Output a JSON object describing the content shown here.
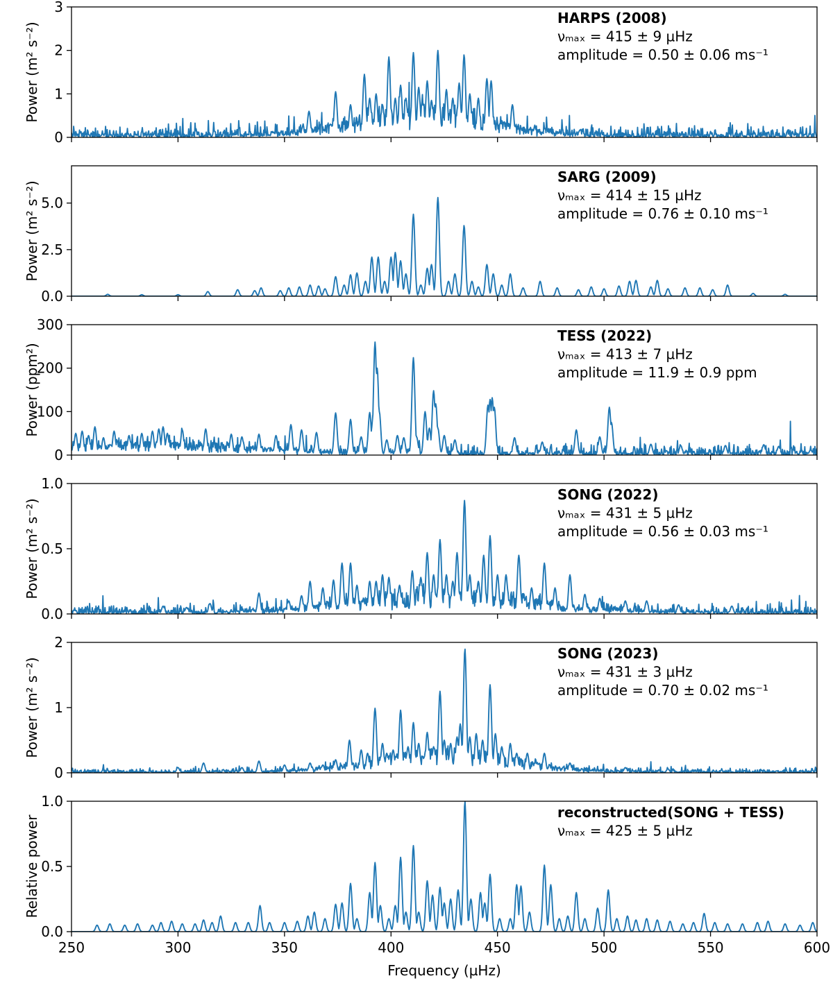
{
  "figure": {
    "xlabel": "Frequency (µHz)",
    "xlim": [
      250,
      600
    ],
    "xticks": [
      250,
      300,
      350,
      400,
      450,
      500,
      550,
      600
    ],
    "line_color": "#1f77b4"
  },
  "chart_data": [
    {
      "type": "line",
      "panel": "HARPS (2008)",
      "ylabel": "Power (m² s⁻²)",
      "ylim": [
        0,
        3
      ],
      "yticks": [
        0,
        1,
        2,
        3
      ],
      "ytick_labels": [
        "0",
        "1",
        "2",
        "3"
      ],
      "annotations": [
        "HARPS (2008)",
        "νₘₐₓ = 415 ± 9 µHz",
        "amplitude = 0.50 ± 0.06 ms⁻¹"
      ],
      "noise": 0.1,
      "envelope": {
        "center": 415,
        "width": 30,
        "height": 0.45
      },
      "seed": 3,
      "peaks": [
        [
          361.5,
          0.6
        ],
        [
          374,
          1.05
        ],
        [
          381,
          0.75
        ],
        [
          387.5,
          1.45
        ],
        [
          390,
          0.9
        ],
        [
          393,
          1.0
        ],
        [
          396,
          0.75
        ],
        [
          399,
          1.85
        ],
        [
          402,
          0.9
        ],
        [
          404.5,
          1.2
        ],
        [
          407,
          0.9
        ],
        [
          410.5,
          1.95
        ],
        [
          413,
          1.15
        ],
        [
          417,
          1.3
        ],
        [
          419,
          0.85
        ],
        [
          422,
          2.0
        ],
        [
          426,
          1.1
        ],
        [
          429,
          0.9
        ],
        [
          432,
          1.25
        ],
        [
          434.3,
          1.9
        ],
        [
          437,
          1.0
        ],
        [
          441,
          0.9
        ],
        [
          445,
          1.35
        ],
        [
          447,
          1.3
        ],
        [
          457,
          0.75
        ]
      ]
    },
    {
      "type": "line",
      "panel": "SARG (2009)",
      "ylabel": "Power (m² s⁻²)",
      "ylim": [
        0,
        7
      ],
      "yticks": [
        0,
        2.5,
        5
      ],
      "ytick_labels": [
        "0.0",
        "2.5",
        "5.0"
      ],
      "annotations": [
        "SARG (2009)",
        "νₘₐₓ = 414 ± 15 µHz",
        "amplitude = 0.76 ± 0.10 ms⁻¹"
      ],
      "noise": 0.0,
      "envelope": {
        "center": 414,
        "width": 35,
        "height": 0.0
      },
      "seed": 7,
      "peaks": [
        [
          267,
          0.1
        ],
        [
          283,
          0.08
        ],
        [
          300,
          0.08
        ],
        [
          314,
          0.25
        ],
        [
          328,
          0.35
        ],
        [
          336,
          0.3
        ],
        [
          339,
          0.45
        ],
        [
          348,
          0.3
        ],
        [
          352,
          0.45
        ],
        [
          357,
          0.5
        ],
        [
          362,
          0.6
        ],
        [
          366,
          0.55
        ],
        [
          369,
          0.4
        ],
        [
          374,
          1.05
        ],
        [
          378,
          0.6
        ],
        [
          381,
          1.15
        ],
        [
          384,
          1.25
        ],
        [
          388,
          0.8
        ],
        [
          391,
          2.1
        ],
        [
          394,
          2.1
        ],
        [
          397,
          0.8
        ],
        [
          400,
          2.1
        ],
        [
          402,
          2.35
        ],
        [
          404.5,
          1.9
        ],
        [
          407,
          1.2
        ],
        [
          410.5,
          4.4
        ],
        [
          414,
          0.6
        ],
        [
          417,
          1.5
        ],
        [
          419,
          1.7
        ],
        [
          422,
          5.3
        ],
        [
          427,
          0.8
        ],
        [
          430,
          1.2
        ],
        [
          434.3,
          3.8
        ],
        [
          438,
          0.8
        ],
        [
          441,
          0.5
        ],
        [
          445,
          1.7
        ],
        [
          448,
          1.2
        ],
        [
          452,
          0.6
        ],
        [
          456,
          1.2
        ],
        [
          462,
          0.45
        ],
        [
          470,
          0.8
        ],
        [
          478,
          0.45
        ],
        [
          488,
          0.35
        ],
        [
          494,
          0.5
        ],
        [
          500,
          0.4
        ],
        [
          507,
          0.55
        ],
        [
          512,
          0.8
        ],
        [
          515,
          0.85
        ],
        [
          522,
          0.5
        ],
        [
          525,
          0.85
        ],
        [
          530,
          0.4
        ],
        [
          538,
          0.45
        ],
        [
          545,
          0.45
        ],
        [
          551,
          0.35
        ],
        [
          558,
          0.6
        ],
        [
          570,
          0.15
        ],
        [
          585,
          0.1
        ]
      ]
    },
    {
      "type": "line",
      "panel": "TESS (2022)",
      "ylabel": "Power (ppm²)",
      "ylim": [
        0,
        300
      ],
      "yticks": [
        0,
        100,
        200,
        300
      ],
      "ytick_labels": [
        "0",
        "100",
        "200",
        "300"
      ],
      "annotations": [
        "TESS (2022)",
        "νₘₐₓ = 413 ± 7 µHz",
        "amplitude = 11.9 ± 0.9 ppm"
      ],
      "noise": 9,
      "envelope": {
        "center": 290,
        "width": 40,
        "height": 18
      },
      "seed": 11,
      "peaks": [
        [
          252,
          50
        ],
        [
          255,
          55
        ],
        [
          258,
          45
        ],
        [
          261,
          65
        ],
        [
          265,
          40
        ],
        [
          270,
          55
        ],
        [
          277,
          45
        ],
        [
          283,
          50
        ],
        [
          288,
          55
        ],
        [
          291,
          60
        ],
        [
          293,
          65
        ],
        [
          295,
          50
        ],
        [
          302,
          58
        ],
        [
          313,
          60
        ],
        [
          325,
          48
        ],
        [
          330,
          42
        ],
        [
          338,
          48
        ],
        [
          346,
          45
        ],
        [
          353,
          70
        ],
        [
          358,
          58
        ],
        [
          365,
          52
        ],
        [
          374,
          97
        ],
        [
          381,
          82
        ],
        [
          386,
          42
        ],
        [
          390,
          98
        ],
        [
          391.5,
          85
        ],
        [
          392.5,
          260
        ],
        [
          393.5,
          200
        ],
        [
          394.5,
          100
        ],
        [
          398,
          35
        ],
        [
          403,
          45
        ],
        [
          406,
          40
        ],
        [
          410.5,
          224
        ],
        [
          412,
          42
        ],
        [
          416,
          100
        ],
        [
          418,
          62
        ],
        [
          420,
          148
        ],
        [
          421,
          118
        ],
        [
          422,
          62
        ],
        [
          425,
          45
        ],
        [
          430,
          35
        ],
        [
          445.5,
          115
        ],
        [
          446.5,
          128
        ],
        [
          447.5,
          132
        ],
        [
          448.5,
          110
        ],
        [
          458,
          40
        ],
        [
          471,
          30
        ],
        [
          487,
          58
        ],
        [
          498,
          42
        ],
        [
          502.5,
          110
        ],
        [
          503.5,
          75
        ],
        [
          522,
          25
        ],
        [
          536,
          22
        ],
        [
          557,
          22
        ],
        [
          575,
          24
        ],
        [
          582,
          20
        ],
        [
          597,
          12
        ]
      ]
    },
    {
      "type": "line",
      "panel": "SONG (2022)",
      "ylabel": "Power (m² s⁻²)",
      "ylim": [
        0,
        1
      ],
      "yticks": [
        0,
        0.5,
        1
      ],
      "ytick_labels": [
        "0.0",
        "0.5",
        "1.0"
      ],
      "annotations": [
        "SONG (2022)",
        "νₘₐₓ = 431 ± 5 µHz",
        "amplitude = 0.56 ± 0.03 ms⁻¹"
      ],
      "noise": 0.025,
      "envelope": {
        "center": 425,
        "width": 42,
        "height": 0.11
      },
      "seed": 23,
      "peaks": [
        [
          293,
          0.06
        ],
        [
          304,
          0.05
        ],
        [
          315,
          0.08
        ],
        [
          338,
          0.16
        ],
        [
          352,
          0.1
        ],
        [
          358,
          0.14
        ],
        [
          362,
          0.25
        ],
        [
          368,
          0.2
        ],
        [
          373,
          0.26
        ],
        [
          377,
          0.39
        ],
        [
          381,
          0.39
        ],
        [
          384,
          0.22
        ],
        [
          390,
          0.25
        ],
        [
          393,
          0.25
        ],
        [
          396,
          0.3
        ],
        [
          399,
          0.28
        ],
        [
          404,
          0.22
        ],
        [
          410,
          0.33
        ],
        [
          414,
          0.28
        ],
        [
          417,
          0.47
        ],
        [
          420,
          0.3
        ],
        [
          423,
          0.57
        ],
        [
          426,
          0.3
        ],
        [
          429,
          0.25
        ],
        [
          431,
          0.47
        ],
        [
          434.5,
          0.87
        ],
        [
          437,
          0.3
        ],
        [
          441,
          0.25
        ],
        [
          443.5,
          0.45
        ],
        [
          446.5,
          0.6
        ],
        [
          450,
          0.3
        ],
        [
          454,
          0.3
        ],
        [
          460,
          0.45
        ],
        [
          466,
          0.2
        ],
        [
          472,
          0.39
        ],
        [
          477,
          0.2
        ],
        [
          484,
          0.3
        ],
        [
          491,
          0.15
        ],
        [
          498,
          0.12
        ],
        [
          510,
          0.1
        ],
        [
          520,
          0.1
        ],
        [
          535,
          0.07
        ],
        [
          560,
          0.06
        ]
      ]
    },
    {
      "type": "line",
      "panel": "SONG (2023)",
      "ylabel": "Power (m² s⁻²)",
      "ylim": [
        0,
        2
      ],
      "yticks": [
        0,
        1,
        2
      ],
      "ytick_labels": [
        "0",
        "1",
        "2"
      ],
      "annotations": [
        "SONG (2023)",
        "νₘₐₓ = 431 ± 3 µHz",
        "amplitude = 0.70 ± 0.02 ms⁻¹"
      ],
      "noise": 0.03,
      "envelope": {
        "center": 425,
        "width": 32,
        "height": 0.22
      },
      "seed": 31,
      "peaks": [
        [
          300,
          0.08
        ],
        [
          312,
          0.15
        ],
        [
          330,
          0.08
        ],
        [
          338,
          0.18
        ],
        [
          350,
          0.12
        ],
        [
          362,
          0.15
        ],
        [
          368,
          0.12
        ],
        [
          374,
          0.2
        ],
        [
          380.5,
          0.5
        ],
        [
          386,
          0.35
        ],
        [
          389,
          0.3
        ],
        [
          392.5,
          0.99
        ],
        [
          396,
          0.45
        ],
        [
          398,
          0.3
        ],
        [
          401,
          0.35
        ],
        [
          404.5,
          0.96
        ],
        [
          408,
          0.4
        ],
        [
          410.5,
          0.77
        ],
        [
          413,
          0.45
        ],
        [
          417,
          0.62
        ],
        [
          420,
          0.4
        ],
        [
          423,
          1.25
        ],
        [
          425,
          0.5
        ],
        [
          428,
          0.45
        ],
        [
          431,
          0.55
        ],
        [
          432.5,
          0.75
        ],
        [
          434.7,
          1.9
        ],
        [
          437,
          0.55
        ],
        [
          440,
          0.6
        ],
        [
          443,
          0.5
        ],
        [
          446.5,
          1.35
        ],
        [
          449,
          0.6
        ],
        [
          452,
          0.4
        ],
        [
          456,
          0.45
        ],
        [
          459,
          0.3
        ],
        [
          464,
          0.3
        ],
        [
          472,
          0.3
        ],
        [
          484,
          0.15
        ],
        [
          510,
          0.08
        ],
        [
          530,
          0.06
        ]
      ]
    },
    {
      "type": "line",
      "panel": "reconstructed(SONG + TESS)",
      "ylabel": "Relative power",
      "ylim": [
        0,
        1
      ],
      "yticks": [
        0,
        0.5,
        1
      ],
      "ytick_labels": [
        "0.0",
        "0.5",
        "1.0"
      ],
      "annotations": [
        "reconstructed(SONG + TESS)",
        "νₘₐₓ = 425 ± 5 µHz"
      ],
      "noise": 0.0,
      "envelope": {
        "center": 425,
        "width": 40,
        "height": 0.0
      },
      "seed": 41,
      "peaks": [
        [
          262,
          0.05
        ],
        [
          268,
          0.06
        ],
        [
          275,
          0.05
        ],
        [
          281,
          0.06
        ],
        [
          288,
          0.05
        ],
        [
          292,
          0.07
        ],
        [
          297,
          0.08
        ],
        [
          302,
          0.06
        ],
        [
          308,
          0.06
        ],
        [
          312,
          0.09
        ],
        [
          316,
          0.07
        ],
        [
          320,
          0.12
        ],
        [
          327,
          0.07
        ],
        [
          333,
          0.07
        ],
        [
          338.5,
          0.2
        ],
        [
          343,
          0.07
        ],
        [
          350,
          0.07
        ],
        [
          356,
          0.08
        ],
        [
          361,
          0.12
        ],
        [
          364,
          0.15
        ],
        [
          369,
          0.1
        ],
        [
          374,
          0.21
        ],
        [
          377,
          0.22
        ],
        [
          381,
          0.37
        ],
        [
          384,
          0.1
        ],
        [
          390,
          0.3
        ],
        [
          392.5,
          0.53
        ],
        [
          395,
          0.2
        ],
        [
          399,
          0.1
        ],
        [
          402,
          0.2
        ],
        [
          404.5,
          0.57
        ],
        [
          407,
          0.15
        ],
        [
          410.5,
          0.66
        ],
        [
          413,
          0.15
        ],
        [
          417,
          0.39
        ],
        [
          419.5,
          0.28
        ],
        [
          423,
          0.34
        ],
        [
          425,
          0.22
        ],
        [
          428,
          0.25
        ],
        [
          431.5,
          0.32
        ],
        [
          434.7,
          1.0
        ],
        [
          437.5,
          0.25
        ],
        [
          442,
          0.3
        ],
        [
          444,
          0.22
        ],
        [
          446.5,
          0.44
        ],
        [
          451,
          0.1
        ],
        [
          456,
          0.1
        ],
        [
          459,
          0.36
        ],
        [
          461,
          0.35
        ],
        [
          465,
          0.15
        ],
        [
          472,
          0.51
        ],
        [
          475,
          0.36
        ],
        [
          479,
          0.1
        ],
        [
          483,
          0.12
        ],
        [
          487,
          0.3
        ],
        [
          491,
          0.1
        ],
        [
          497,
          0.18
        ],
        [
          502,
          0.32
        ],
        [
          506,
          0.1
        ],
        [
          511,
          0.12
        ],
        [
          515,
          0.09
        ],
        [
          520,
          0.1
        ],
        [
          525,
          0.09
        ],
        [
          531,
          0.08
        ],
        [
          537,
          0.06
        ],
        [
          542,
          0.07
        ],
        [
          547,
          0.14
        ],
        [
          552,
          0.07
        ],
        [
          558,
          0.06
        ],
        [
          565,
          0.06
        ],
        [
          572,
          0.07
        ],
        [
          577,
          0.08
        ],
        [
          585,
          0.06
        ],
        [
          592,
          0.05
        ],
        [
          598,
          0.07
        ]
      ]
    }
  ]
}
